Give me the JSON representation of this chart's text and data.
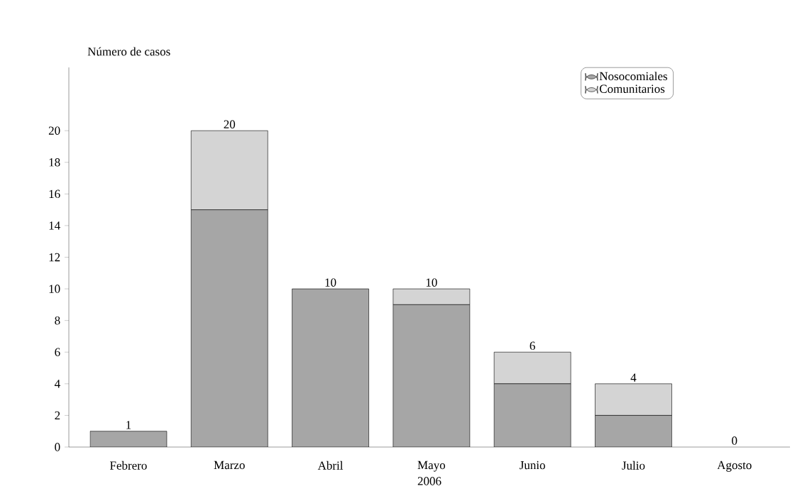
{
  "chart_data": {
    "type": "bar",
    "stacked": true,
    "ylabel": "Número de casos",
    "xlabel": "2006",
    "categories": [
      "Febrero",
      "Marzo",
      "Abril",
      "Mayo",
      "Junio",
      "Julio",
      "Agosto"
    ],
    "series": [
      {
        "name": "Nosocomiales",
        "color": "#a6a6a6",
        "values": [
          1,
          15,
          10,
          9,
          4,
          2,
          0
        ]
      },
      {
        "name": "Comunitarios",
        "color": "#d4d4d4",
        "values": [
          0,
          5,
          0,
          1,
          2,
          2,
          0
        ]
      }
    ],
    "totals": [
      "1",
      "20",
      "10",
      "10",
      "6",
      "4",
      "0"
    ],
    "ylim": [
      0,
      24
    ],
    "yticks": [
      0,
      2,
      4,
      6,
      8,
      10,
      12,
      14,
      16,
      18,
      20
    ],
    "legend": "top right"
  }
}
